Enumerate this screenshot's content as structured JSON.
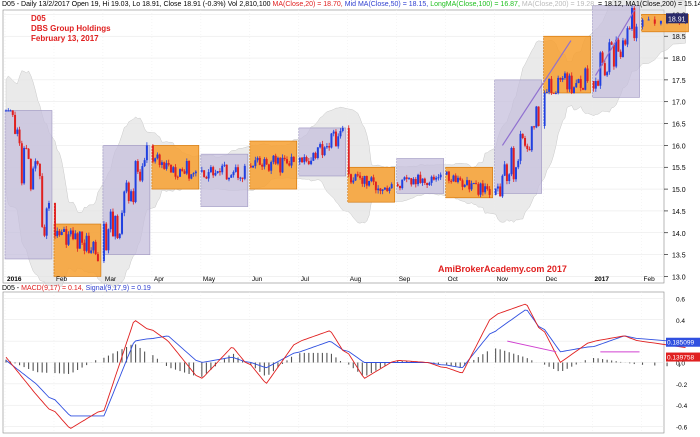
{
  "header": {
    "parts": [
      {
        "text": "D05 - Daily 13/2/2017 Open 19, Hi 19.03, Lo 18.91, Close 18.91 (-0.3%) Vol 2,810,100",
        "color": "#000000"
      },
      {
        "text": "MA(Close,20) = 18.70,",
        "color": "#e02020"
      },
      {
        "text": "Mid MA(Close,50) = 18.15,",
        "color": "#3040d0"
      },
      {
        "text": "LongMA(Close,100) = 16.87,",
        "color": "#20c020"
      },
      {
        "text": "MA(Close,200) = 19.28,",
        "color": "#bbbbbb"
      },
      {
        "text": "= 18.12, MA1(Close,200) = 15.14",
        "color": "#000000"
      }
    ]
  },
  "titles": {
    "line1": "D05",
    "line2": "DBS Group Holdings",
    "line3": "February 13, 2017"
  },
  "watermark": "AmiBrokerAcademy.com  2017",
  "macd_header": {
    "parts": [
      {
        "text": "D05 -",
        "color": "#000000"
      },
      {
        "text": "MACD(9,17) = 0.14,",
        "color": "#e02020"
      },
      {
        "text": "Signal(9,17,9) = 0.19",
        "color": "#3040d0"
      }
    ]
  },
  "colors": {
    "up": "#2040e0",
    "down": "#e02020",
    "box_purple": "#c5bfdc",
    "box_orange": "#f7a030",
    "band": "#d8d8d8",
    "macd": "#e02020",
    "signal": "#3050e0",
    "hist": "#555555"
  },
  "chart_data": [
    {
      "type": "candlestick",
      "x_tick_labels": [
        "2016",
        "Feb",
        "Mar",
        "Apr",
        "May",
        "Jun",
        "Jul",
        "Aug",
        "Sep",
        "Oct",
        "Nov",
        "Dec",
        "2017",
        "Feb"
      ],
      "y_ticks": [
        "13.0",
        "13.5",
        "14.0",
        "14.5",
        "15.0",
        "15.5",
        "16.0",
        "16.5",
        "17.0",
        "17.5",
        "18.0",
        "18.5",
        "19.0"
      ],
      "ylim": [
        12.85,
        19.1
      ],
      "last_price_label": "18.91",
      "monthly_ohlc": [
        {
          "month": "Jan 2016",
          "open": 16.7,
          "high": 16.8,
          "low": 13.5,
          "close": 14.2
        },
        {
          "month": "Feb 2016",
          "open": 14.1,
          "high": 14.2,
          "low": 13.0,
          "close": 13.6
        },
        {
          "month": "Mar 2016",
          "open": 13.7,
          "high": 16.0,
          "low": 13.6,
          "close": 15.7
        },
        {
          "month": "Apr 2016",
          "open": 15.6,
          "high": 16.0,
          "low": 15.0,
          "close": 15.4
        },
        {
          "month": "May 2016",
          "open": 15.4,
          "high": 15.6,
          "low": 14.7,
          "close": 15.4
        },
        {
          "month": "Jun 2016",
          "open": 15.5,
          "high": 16.1,
          "low": 15.0,
          "close": 15.6
        },
        {
          "month": "Jul 2016",
          "open": 15.6,
          "high": 16.4,
          "low": 15.4,
          "close": 16.3
        },
        {
          "month": "Aug 2016",
          "open": 15.3,
          "high": 15.5,
          "low": 14.7,
          "close": 15.0
        },
        {
          "month": "Sep 2016",
          "open": 15.1,
          "high": 15.7,
          "low": 15.0,
          "close": 15.3
        },
        {
          "month": "Oct 2016",
          "open": 15.3,
          "high": 15.5,
          "low": 14.8,
          "close": 14.9
        },
        {
          "month": "Nov 2016",
          "open": 14.9,
          "high": 16.9,
          "low": 14.8,
          "close": 16.6
        },
        {
          "month": "Dec 2016",
          "open": 17.2,
          "high": 18.5,
          "low": 17.2,
          "close": 17.6
        },
        {
          "month": "Jan 2017",
          "open": 17.5,
          "high": 19.2,
          "low": 17.3,
          "close": 18.9
        },
        {
          "month": "Feb 2017",
          "open": 18.8,
          "high": 19.0,
          "low": 18.6,
          "close": 18.91
        }
      ],
      "month_range_boxes": [
        {
          "month": "Jan 2016",
          "high": 16.8,
          "low": 13.4,
          "color": "purple"
        },
        {
          "month": "Feb 2016",
          "high": 14.2,
          "low": 13.0,
          "color": "orange"
        },
        {
          "month": "Mar 2016",
          "high": 16.0,
          "low": 13.5,
          "color": "purple"
        },
        {
          "month": "Apr 2016",
          "high": 16.0,
          "low": 15.0,
          "color": "orange"
        },
        {
          "month": "May 2016",
          "high": 15.8,
          "low": 14.6,
          "color": "purple"
        },
        {
          "month": "Jun 2016",
          "high": 16.1,
          "low": 15.0,
          "color": "orange"
        },
        {
          "month": "Jul 2016",
          "high": 16.4,
          "low": 15.3,
          "color": "purple"
        },
        {
          "month": "Aug 2016",
          "high": 15.5,
          "low": 14.7,
          "color": "orange"
        },
        {
          "month": "Sep 2016",
          "high": 15.7,
          "low": 14.9,
          "color": "purple"
        },
        {
          "month": "Oct 2016",
          "high": 15.5,
          "low": 14.8,
          "color": "orange"
        },
        {
          "month": "Nov 2016",
          "high": 17.5,
          "low": 14.9,
          "color": "purple"
        },
        {
          "month": "Dec 2016",
          "high": 18.5,
          "low": 17.2,
          "color": "orange"
        },
        {
          "month": "Jan 2017",
          "high": 19.2,
          "low": 17.1,
          "color": "purple"
        },
        {
          "month": "Feb 2017",
          "high": 19.0,
          "low": 18.6,
          "color": "orange"
        }
      ]
    },
    {
      "type": "line",
      "title": "MACD",
      "x_tick_labels": [
        "2016",
        "Feb",
        "Mar",
        "Apr",
        "May",
        "Jun",
        "Jul",
        "Aug",
        "Sep",
        "Oct",
        "Nov",
        "Dec",
        "2017",
        "Feb"
      ],
      "y_ticks": [
        "-0.6",
        "-0.4",
        "-0.2",
        "0.0",
        "0.2",
        "0.4",
        "0.6"
      ],
      "ylim": [
        -0.66,
        0.66
      ],
      "value_labels": [
        "0.185099",
        "0.139758"
      ],
      "series": [
        {
          "name": "MACD(9,17)",
          "values": [
            0.05,
            -0.3,
            -0.62,
            -0.45,
            0.4,
            0.2,
            -0.15,
            0.15,
            -0.2,
            0.2,
            0.3,
            -0.15,
            0.02,
            0.0,
            -0.1,
            0.45,
            0.55,
            0.0,
            0.2,
            0.25,
            0.14
          ]
        },
        {
          "name": "Signal(9,17,9)",
          "values": [
            0.02,
            -0.2,
            -0.5,
            -0.5,
            0.2,
            0.25,
            0.0,
            0.05,
            -0.05,
            0.1,
            0.2,
            0.0,
            0.0,
            0.0,
            -0.05,
            0.3,
            0.5,
            0.1,
            0.15,
            0.25,
            0.19
          ]
        }
      ]
    }
  ]
}
